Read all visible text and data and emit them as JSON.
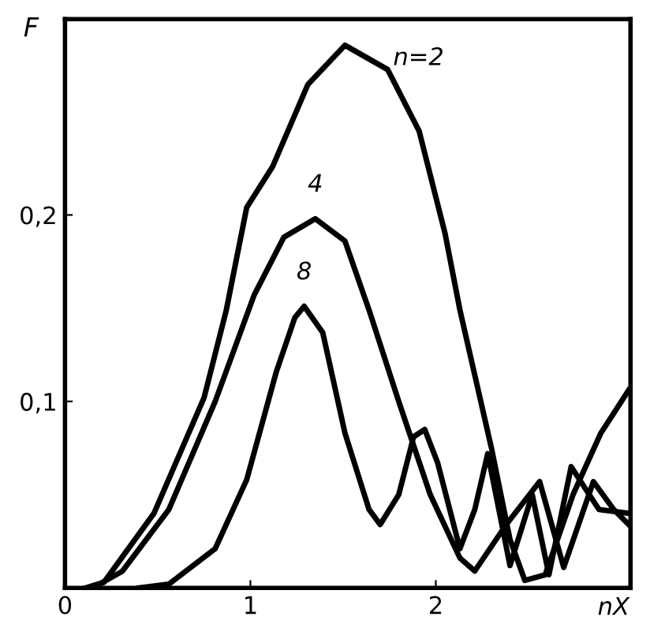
{
  "chart_data": {
    "type": "line",
    "xlabel": "nX",
    "ylabel": "F",
    "xlim": [
      0,
      3.05
    ],
    "ylim": [
      0,
      0.305
    ],
    "xticks": [
      0,
      1,
      2
    ],
    "yticks": [
      {
        "value": 0.1,
        "label": "0,1"
      },
      {
        "value": 0.2,
        "label": "0,2"
      }
    ],
    "grid": false,
    "legend": false,
    "marker": "none",
    "line_style": "solid",
    "series": [
      {
        "name": "n=2",
        "color": "#000000",
        "x": [
          0.11,
          0.21,
          0.48,
          0.75,
          0.87,
          0.98,
          1.12,
          1.31,
          1.51,
          1.74,
          1.91,
          2.05,
          2.13,
          2.3,
          2.4,
          2.48,
          2.59,
          2.74,
          2.89,
          3.04
        ],
        "values": [
          0,
          0.003,
          0.04,
          0.102,
          0.149,
          0.204,
          0.226,
          0.27,
          0.291,
          0.278,
          0.245,
          0.19,
          0.149,
          0.075,
          0.026,
          0.004,
          0.007,
          0.05,
          0.083,
          0.106
        ]
      },
      {
        "name": "4",
        "color": "#000000",
        "x": [
          0.15,
          0.31,
          0.56,
          0.81,
          1.02,
          1.18,
          1.35,
          1.51,
          1.64,
          1.8,
          1.97,
          2.13,
          2.21,
          2.38,
          2.56,
          2.69,
          2.85,
          2.96,
          3.04
        ],
        "values": [
          0,
          0.009,
          0.042,
          0.1,
          0.157,
          0.188,
          0.198,
          0.186,
          0.149,
          0.1,
          0.05,
          0.016,
          0.009,
          0.034,
          0.057,
          0.011,
          0.057,
          0.042,
          0.034
        ]
      },
      {
        "name": "8",
        "color": "#000000",
        "x": [
          0.4,
          0.56,
          0.81,
          0.98,
          1.14,
          1.24,
          1.29,
          1.39,
          1.51,
          1.64,
          1.7,
          1.8,
          1.88,
          1.94,
          2.01,
          2.13,
          2.21,
          2.28,
          2.34,
          2.4,
          2.52,
          2.61,
          2.73,
          2.88,
          3.04
        ],
        "values": [
          0,
          0.002,
          0.021,
          0.058,
          0.116,
          0.145,
          0.151,
          0.137,
          0.083,
          0.042,
          0.034,
          0.05,
          0.081,
          0.085,
          0.067,
          0.021,
          0.042,
          0.072,
          0.042,
          0.012,
          0.05,
          0.007,
          0.065,
          0.042,
          0.04
        ]
      }
    ]
  }
}
